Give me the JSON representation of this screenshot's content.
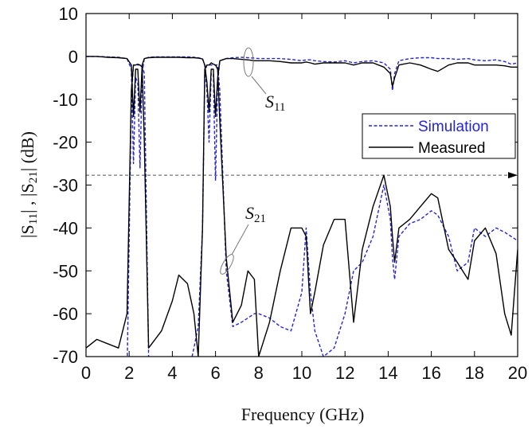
{
  "chart_data": {
    "type": "line",
    "xlabel": "Frequency (GHz)",
    "ylabel": [
      "|S",
      "11",
      "| , |S",
      "21",
      "| (dB)"
    ],
    "xlim": [
      0,
      20
    ],
    "ylim": [
      -70,
      10
    ],
    "xticks": [
      0,
      2,
      4,
      6,
      8,
      10,
      12,
      14,
      16,
      18,
      20
    ],
    "yticks": [
      -70,
      -60,
      -50,
      -40,
      -30,
      -20,
      -10,
      0,
      10
    ],
    "legend": "right",
    "reference_line": -27.7,
    "annotations": [
      {
        "text": "S",
        "sub": "11"
      },
      {
        "text": "S",
        "sub": "21"
      }
    ],
    "x": [
      0,
      0.5,
      1,
      1.5,
      1.9,
      2.1,
      2.2,
      2.3,
      2.4,
      2.5,
      2.6,
      2.7,
      2.9,
      3.2,
      3.5,
      4,
      4.3,
      4.7,
      5,
      5.2,
      5.4,
      5.5,
      5.6,
      5.7,
      5.8,
      5.9,
      6.0,
      6.1,
      6.2,
      6.5,
      6.8,
      7.2,
      7.5,
      7.8,
      8,
      8.5,
      9,
      9.5,
      10,
      10.2,
      10.4,
      10.6,
      11,
      11.5,
      12,
      12.4,
      12.8,
      13.3,
      13.8,
      14.1,
      14.2,
      14.3,
      14.5,
      15,
      15.5,
      16,
      16.3,
      16.8,
      17.2,
      17.7,
      18,
      18.5,
      19,
      19.4,
      19.7,
      20
    ],
    "series": [
      {
        "name": "Simulation",
        "color": "#2424d8",
        "dash": true,
        "s11": [
          0,
          0,
          -0.1,
          -0.2,
          -0.5,
          -3,
          -25,
          -5,
          -6,
          -26,
          -4,
          -0.5,
          -0.2,
          -0.1,
          -0.1,
          -0.1,
          -0.1,
          -0.1,
          -0.2,
          -0.3,
          -0.5,
          -2,
          -8,
          -20,
          -4,
          -4,
          -29,
          -6,
          -1,
          -0.5,
          -0.3,
          -0.2,
          -0.3,
          -0.4,
          -0.5,
          -0.5,
          -0.5,
          -0.7,
          -1,
          -0.8,
          -0.8,
          -1,
          -1.2,
          -1.3,
          -1,
          -1.5,
          -1.2,
          -1,
          -1.5,
          -3,
          -8,
          -4,
          -1,
          -0.5,
          -0.3,
          -0.3,
          -0.5,
          -0.5,
          -0.7,
          -0.5,
          -0.8,
          -1,
          -0.8,
          -1.2,
          -1.8,
          -1.5
        ],
        "s21": [
          -80,
          -80,
          -80,
          -80,
          -75,
          -10,
          -2,
          -2,
          -2,
          -2,
          -2,
          -4,
          -70,
          -80,
          -80,
          -80,
          -80,
          -75,
          -68,
          -63,
          -40,
          -4,
          -2,
          -2,
          -2,
          -2,
          -2,
          -2,
          -8,
          -50,
          -63,
          -62,
          -61,
          -60,
          -60,
          -61,
          -63,
          -64,
          -55,
          -40,
          -55,
          -64,
          -70,
          -68,
          -60,
          -50,
          -48,
          -42,
          -30,
          -38,
          -47,
          -52,
          -42,
          -39,
          -38,
          -36,
          -37,
          -42,
          -50,
          -48,
          -40,
          -42,
          -40,
          -41,
          -42,
          -43
        ]
      },
      {
        "name": "Measured",
        "color": "#000000",
        "dash": false,
        "s11": [
          0,
          0,
          -0.2,
          -0.3,
          -0.5,
          -2,
          -14,
          -3,
          -3,
          -13,
          -2,
          -0.5,
          -0.3,
          -0.2,
          -0.2,
          -0.2,
          -0.2,
          -0.3,
          -0.3,
          -0.4,
          -0.6,
          -2,
          -6,
          -13,
          -3,
          -3,
          -14,
          -5,
          -1,
          -0.5,
          -0.5,
          -0.7,
          -0.8,
          -1,
          -1,
          -1,
          -1.2,
          -1.5,
          -1.5,
          -1.3,
          -1.5,
          -1.8,
          -1.5,
          -1.5,
          -1.5,
          -2,
          -1.5,
          -1.5,
          -2.5,
          -4,
          -7,
          -5,
          -2,
          -1.5,
          -2,
          -3,
          -3.5,
          -2,
          -1.5,
          -1.5,
          -2,
          -2,
          -2,
          -2.2,
          -2.5,
          -2.5
        ],
        "s21": [
          -68,
          -66,
          -67,
          -68,
          -60,
          -8,
          -2,
          -2,
          -1.8,
          -2,
          -2.5,
          -20,
          -68,
          -66,
          -64,
          -57,
          -51,
          -53,
          -60,
          -70,
          -40,
          -3,
          -2,
          -2,
          -1.5,
          -1.8,
          -2,
          -3,
          -15,
          -47,
          -62,
          -58,
          -50,
          -52,
          -70,
          -62,
          -50,
          -40,
          -40,
          -42,
          -60,
          -55,
          -44,
          -38,
          -38,
          -62,
          -45,
          -35,
          -27.7,
          -35,
          -42,
          -48,
          -40,
          -38,
          -35,
          -32,
          -33,
          -45,
          -48,
          -52,
          -43,
          -40,
          -46,
          -60,
          -65,
          -45
        ]
      }
    ]
  }
}
